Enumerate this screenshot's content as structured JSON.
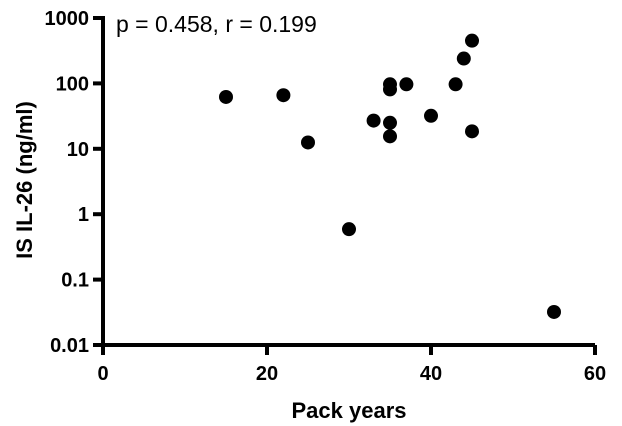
{
  "chart_data": {
    "type": "scatter",
    "annotation": "p = 0.458, r = 0.199",
    "xlabel": "Pack years",
    "ylabel": "IS IL-26 (ng/ml)",
    "xlim": [
      0,
      60
    ],
    "ylim": [
      0.01,
      1000
    ],
    "yscale": "log",
    "grid": false,
    "x_ticks": [
      0,
      20,
      40,
      60
    ],
    "x_tick_labels": [
      "0",
      "20",
      "40",
      "60"
    ],
    "y_ticks": [
      0.01,
      0.1,
      1,
      10,
      100,
      1000
    ],
    "y_tick_labels": [
      "0.01",
      "0.1",
      "1",
      "10",
      "100",
      "1000"
    ],
    "marker_color": "#000000",
    "points": [
      {
        "x": 15,
        "y": 62
      },
      {
        "x": 22,
        "y": 66
      },
      {
        "x": 25,
        "y": 12.5
      },
      {
        "x": 30,
        "y": 0.59
      },
      {
        "x": 33,
        "y": 27
      },
      {
        "x": 35,
        "y": 97
      },
      {
        "x": 35,
        "y": 81
      },
      {
        "x": 35,
        "y": 25
      },
      {
        "x": 35,
        "y": 15.5
      },
      {
        "x": 37,
        "y": 97
      },
      {
        "x": 40,
        "y": 32
      },
      {
        "x": 43,
        "y": 97
      },
      {
        "x": 44,
        "y": 240
      },
      {
        "x": 45,
        "y": 450
      },
      {
        "x": 45,
        "y": 18.5
      },
      {
        "x": 55,
        "y": 0.032
      }
    ]
  }
}
